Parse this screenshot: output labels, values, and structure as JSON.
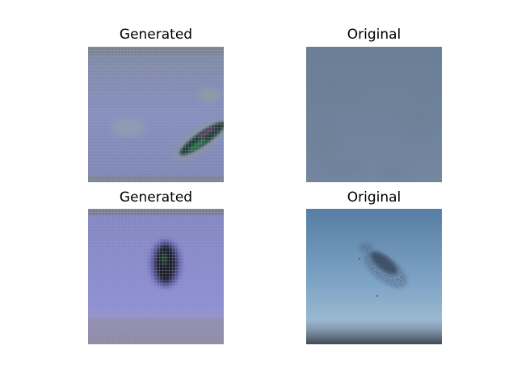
{
  "panels": [
    {
      "title": "Generated"
    },
    {
      "title": "Original"
    },
    {
      "title": "Generated"
    },
    {
      "title": "Original"
    }
  ]
}
